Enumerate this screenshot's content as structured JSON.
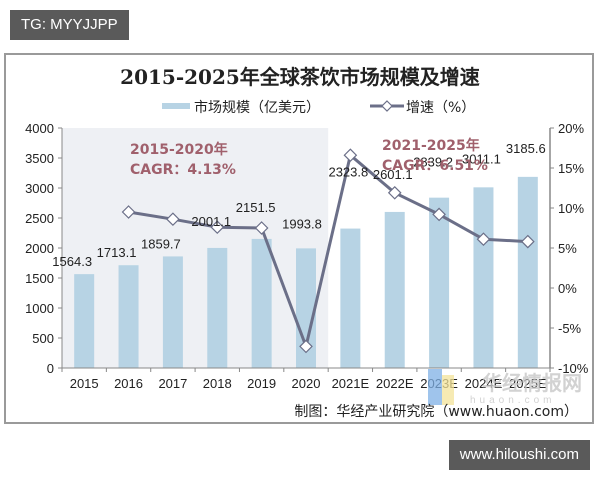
{
  "watermark_top": "TG: MYYJJPP",
  "watermark_bottom": "www.hiloushi.com",
  "source_note": "制图：华经产业研究院（www.huaon.com）",
  "logo_watermark": {
    "text": "华经情报网",
    "sub": "huaon.com"
  },
  "colors": {
    "bar": "#b7d3e4",
    "line": "#6b6f88",
    "shade": "#eef0f4",
    "cagr_text": "#a0606c",
    "axis": "#888888"
  },
  "annotations": {
    "left_period": "2015-2020年",
    "left_cagr": "CAGR：4.13%",
    "right_period": "2021-2025年",
    "right_cagr": "CAGR：6.51%"
  },
  "chart_data": {
    "type": "bar+line",
    "title": "2015-2025年全球茶饮市场规模及增速",
    "categories": [
      "2015",
      "2016",
      "2017",
      "2018",
      "2019",
      "2020",
      "2021E",
      "2022E",
      "2023E",
      "2024E",
      "2025E"
    ],
    "series": [
      {
        "name": "市场规模（亿美元）",
        "type": "bar",
        "axis": "left",
        "values": [
          1564.3,
          1713.1,
          1859.7,
          2001.1,
          2151.5,
          1993.8,
          2323.8,
          2601.1,
          2839.2,
          3011.1,
          3185.6
        ],
        "labels": [
          "1564.3",
          "1713.1",
          "1859.7",
          "2001.1",
          "2151.5",
          "1993.8",
          "2323.8",
          "2601.1",
          "2839.2",
          "3011.1",
          "3185.6"
        ]
      },
      {
        "name": "增速（%）",
        "type": "line",
        "axis": "right",
        "marker": "diamond",
        "values": [
          null,
          9.5,
          8.6,
          7.6,
          7.5,
          -7.3,
          16.6,
          11.9,
          9.2,
          6.1,
          5.8
        ]
      }
    ],
    "y_left": {
      "min": 0,
      "max": 4000,
      "ticks": [
        "0",
        "500",
        "1000",
        "1500",
        "2000",
        "2500",
        "3000",
        "3500",
        "4000"
      ]
    },
    "y_right": {
      "min": -10,
      "max": 20,
      "ticks": [
        "-10%",
        "-5%",
        "0%",
        "5%",
        "10%",
        "15%",
        "20%"
      ]
    },
    "xlabel": "",
    "ylabel": "",
    "legend_position": "top",
    "grid": false,
    "shaded_region": {
      "from": "2015",
      "to": "2020"
    }
  }
}
